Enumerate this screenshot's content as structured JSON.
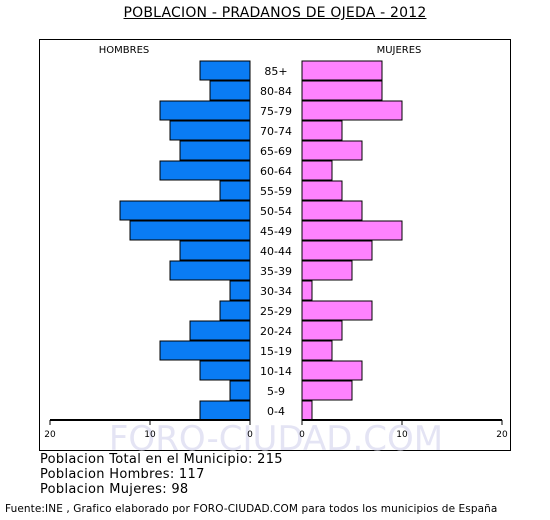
{
  "colors": {
    "men": "#0a7cf4",
    "women": "#fe82fe",
    "watermark": "#e4e4f4"
  },
  "chart_data": {
    "type": "bar",
    "subtype": "population-pyramid",
    "title": "POBLACION - PRADANOS DE OJEDA - 2012",
    "categories": [
      "85+",
      "80-84",
      "75-79",
      "70-74",
      "65-69",
      "60-64",
      "55-59",
      "50-54",
      "45-49",
      "40-44",
      "35-39",
      "30-34",
      "25-29",
      "20-24",
      "15-19",
      "10-14",
      "5-9",
      "0-4"
    ],
    "series": [
      {
        "name": "HOMBRES",
        "values": [
          5,
          4,
          9,
          8,
          7,
          9,
          3,
          13,
          12,
          7,
          8,
          2,
          3,
          6,
          9,
          5,
          2,
          5
        ]
      },
      {
        "name": "MUJERES",
        "values": [
          8,
          8,
          10,
          4,
          6,
          3,
          4,
          6,
          10,
          7,
          5,
          1,
          7,
          4,
          3,
          6,
          5,
          1
        ]
      }
    ],
    "xlim": [
      0,
      20
    ],
    "x_ticks_left": [
      "20",
      "10",
      "0"
    ],
    "x_ticks_right": [
      "0",
      "10",
      "20"
    ],
    "watermark": "FORO-CIUDAD.COM"
  },
  "stats": {
    "total": "Poblacion Total en el Municipio: 215",
    "men": "Poblacion Hombres: 117",
    "women": "Poblacion Mujeres: 98"
  },
  "source": "Fuente:INE , Grafico elaborado por FORO-CIUDAD.COM para todos los municipios de España"
}
